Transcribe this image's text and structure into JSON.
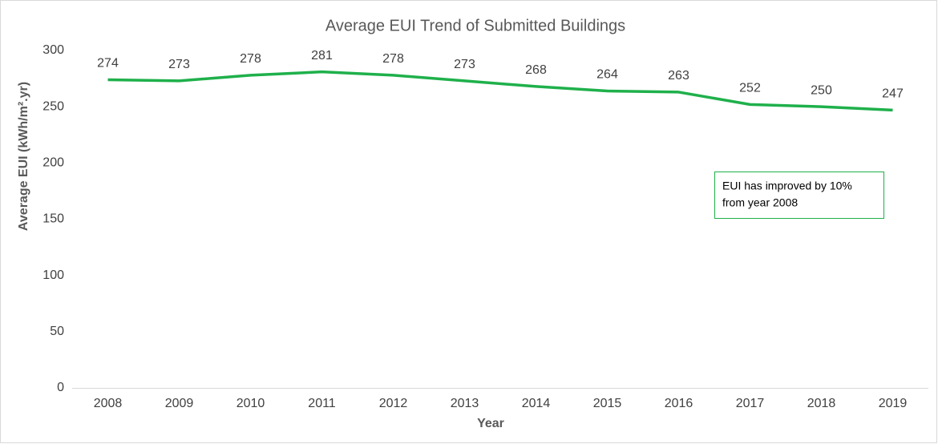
{
  "chart_data": {
    "type": "line",
    "title": "Average EUI Trend of Submitted Buildings",
    "xlabel": "Year",
    "ylabel": "Average EUI  (kWh/m².yr)",
    "categories": [
      "2008",
      "2009",
      "2010",
      "2011",
      "2012",
      "2013",
      "2014",
      "2015",
      "2016",
      "2017",
      "2018",
      "2019"
    ],
    "values": [
      274,
      273,
      278,
      281,
      278,
      273,
      268,
      264,
      263,
      252,
      250,
      247
    ],
    "color": "#1fb04b",
    "ylim": [
      0,
      300
    ],
    "yticks": [
      0,
      50,
      100,
      150,
      200,
      250,
      300
    ],
    "grid": false,
    "annotation": [
      "EUI has improved by 10%",
      "from year 2008"
    ]
  }
}
